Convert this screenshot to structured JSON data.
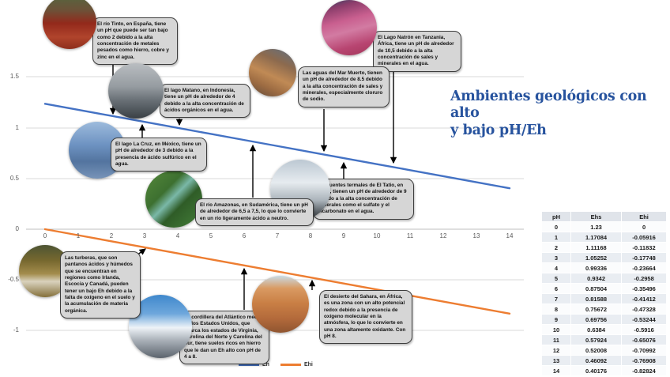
{
  "title": {
    "line1": "Ambientes geológicos con alto",
    "line2": "y bajo pH/Eh"
  },
  "legend": {
    "eh": "Eh",
    "ehi": "Ehi"
  },
  "colors": {
    "eh_line": "#4472C4",
    "ehi_line": "#ED7D31",
    "title_text": "#27539E",
    "callout_bg": "#D6D6D6",
    "callout_border": "#3D3D3D",
    "gridline": "#D9D9D9"
  },
  "chart_data": {
    "type": "line",
    "x": [
      0,
      1,
      2,
      3,
      4,
      5,
      6,
      7,
      8,
      9,
      10,
      11,
      12,
      13,
      14
    ],
    "series": [
      {
        "name": "Eh",
        "color": "#4472C4",
        "values": [
          1.23,
          1.17084,
          1.11168,
          1.05252,
          0.99336,
          0.9342,
          0.87504,
          0.81588,
          0.75672,
          0.69756,
          0.6384,
          0.57924,
          0.52008,
          0.46092,
          0.40176
        ]
      },
      {
        "name": "Ehi",
        "color": "#ED7D31",
        "values": [
          0,
          -0.05916,
          -0.11832,
          -0.17748,
          -0.23664,
          -0.2958,
          -0.35496,
          -0.41412,
          -0.47328,
          -0.53244,
          -0.5916,
          -0.65076,
          -0.70992,
          -0.76908,
          -0.82824
        ]
      }
    ],
    "x_ticks": [
      "0",
      "1",
      "2",
      "3",
      "4",
      "5",
      "6",
      "7",
      "8",
      "9",
      "10",
      "11",
      "12",
      "13",
      "14"
    ],
    "y_ticks": [
      "1.5",
      "1",
      "0.5",
      "0",
      "-0.5",
      "-1"
    ],
    "ylim": [
      -1,
      1.5
    ],
    "grid": true,
    "legend_position": "bottom-center"
  },
  "callouts": {
    "rio_tinto": "El río Tinto, en España, tiene un pH que puede ser tan bajo como 2 debido a la alta concentración de metales pesados como hierro, cobre y zinc en el agua.",
    "matano": "El lago Matano, en Indonesia, tiene un pH de alrededor de 4 debido a la alta concentración de ácidos orgánicos en el agua.",
    "natron": "El Lago Natrón en Tanzania, África, tiene un pH de alrededor de 10,5 debido a la alta concentración de sales y minerales en el agua.",
    "mar_muerto": "Las aguas del Mar Muerto, tienen un pH de alrededor de 8.5 debido a la alta concentración de sales y minerales, especialmente cloruro de sodio.",
    "la_cruz": "El lago La Cruz, en México, tiene un pH de alrededor de 3 debido a la presencia de ácido sulfúrico en el agua.",
    "amazonas": "El río Amazonas, en Sudamérica, tiene un pH de alrededor de 6,5 a 7,5, lo que lo convierte en un río ligeramente ácido a neutro.",
    "tatio": "Las fuentes termales de El Tatio, en Chile, tienen un pH de alrededor de 9 debido a la alta concentración de minerales como el sulfato y el bicarbonato en el agua.",
    "turberas": "Las turberas, que son pantanos ácidos y húmedos que se encuentran en regiones como Irlanda, Escocia y Canadá, pueden tener un bajo Eh debido a la falta de oxígeno en el suelo y la acumulación de materia orgánica.",
    "cordillera": "La cordillera del Atlántico medio en los Estados Unidos, que abarca los estados de Virginia, Carolina del Norte y Carolina del Sur, tiene suelos ricos en hierro que le dan un Eh alto con pH de 4 a 8.",
    "sahara": "El desierto del Sahara, en África, es una zona con un alto potencial redox debido a la presencia de oxígeno molecular en la atmósfera, lo que lo convierte en una zona altamente oxidante. Con pH 8."
  },
  "photos": [
    "rio-tinto-photo",
    "matano-photo",
    "natron-photo",
    "mar-muerto-photo",
    "la-cruz-photo",
    "amazonas-photo",
    "tatio-photo",
    "turberas-photo",
    "cordillera-photo",
    "sahara-photo"
  ],
  "table": {
    "headers": [
      "pH",
      "Ehs",
      "Ehi"
    ],
    "rows": [
      [
        "0",
        "1.23",
        "0"
      ],
      [
        "1",
        "1.17084",
        "-0.05916"
      ],
      [
        "2",
        "1.11168",
        "-0.11832"
      ],
      [
        "3",
        "1.05252",
        "-0.17748"
      ],
      [
        "4",
        "0.99336",
        "-0.23664"
      ],
      [
        "5",
        "0.9342",
        "-0.2958"
      ],
      [
        "6",
        "0.87504",
        "-0.35496"
      ],
      [
        "7",
        "0.81588",
        "-0.41412"
      ],
      [
        "8",
        "0.75672",
        "-0.47328"
      ],
      [
        "9",
        "0.69756",
        "-0.53244"
      ],
      [
        "10",
        "0.6384",
        "-0.5916"
      ],
      [
        "11",
        "0.57924",
        "-0.65076"
      ],
      [
        "12",
        "0.52008",
        "-0.70992"
      ],
      [
        "13",
        "0.46092",
        "-0.76908"
      ],
      [
        "14",
        "0.40176",
        "-0.82824"
      ]
    ]
  }
}
